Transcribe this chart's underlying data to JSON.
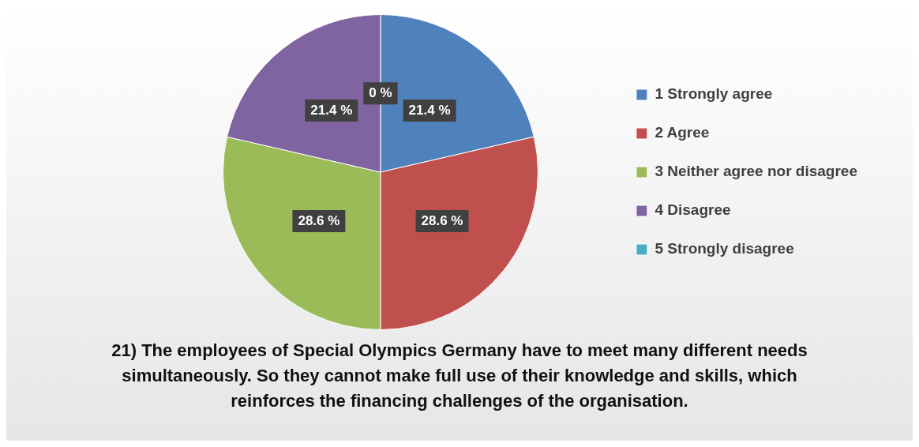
{
  "chart_data": {
    "type": "pie",
    "title": "21) The employees of Special Olympics Germany have to meet many different needs simultaneously.  So they cannot make full use of their knowledge and skills, which reinforces the financing challenges of the organisation.",
    "categories": [
      "1 Strongly agree",
      "2 Agree",
      "3 Neither agree nor disagree",
      "4 Disagree",
      "5 Strongly disagree"
    ],
    "values": [
      21.4,
      28.6,
      28.6,
      21.4,
      0
    ],
    "value_labels": [
      "21.4 %",
      "28.6 %",
      "28.6 %",
      "21.4 %",
      "0 %"
    ],
    "colors": [
      "#4f81bd",
      "#c0504d",
      "#9bbb59",
      "#8064a2",
      "#4bacc6"
    ],
    "legend": "right"
  }
}
